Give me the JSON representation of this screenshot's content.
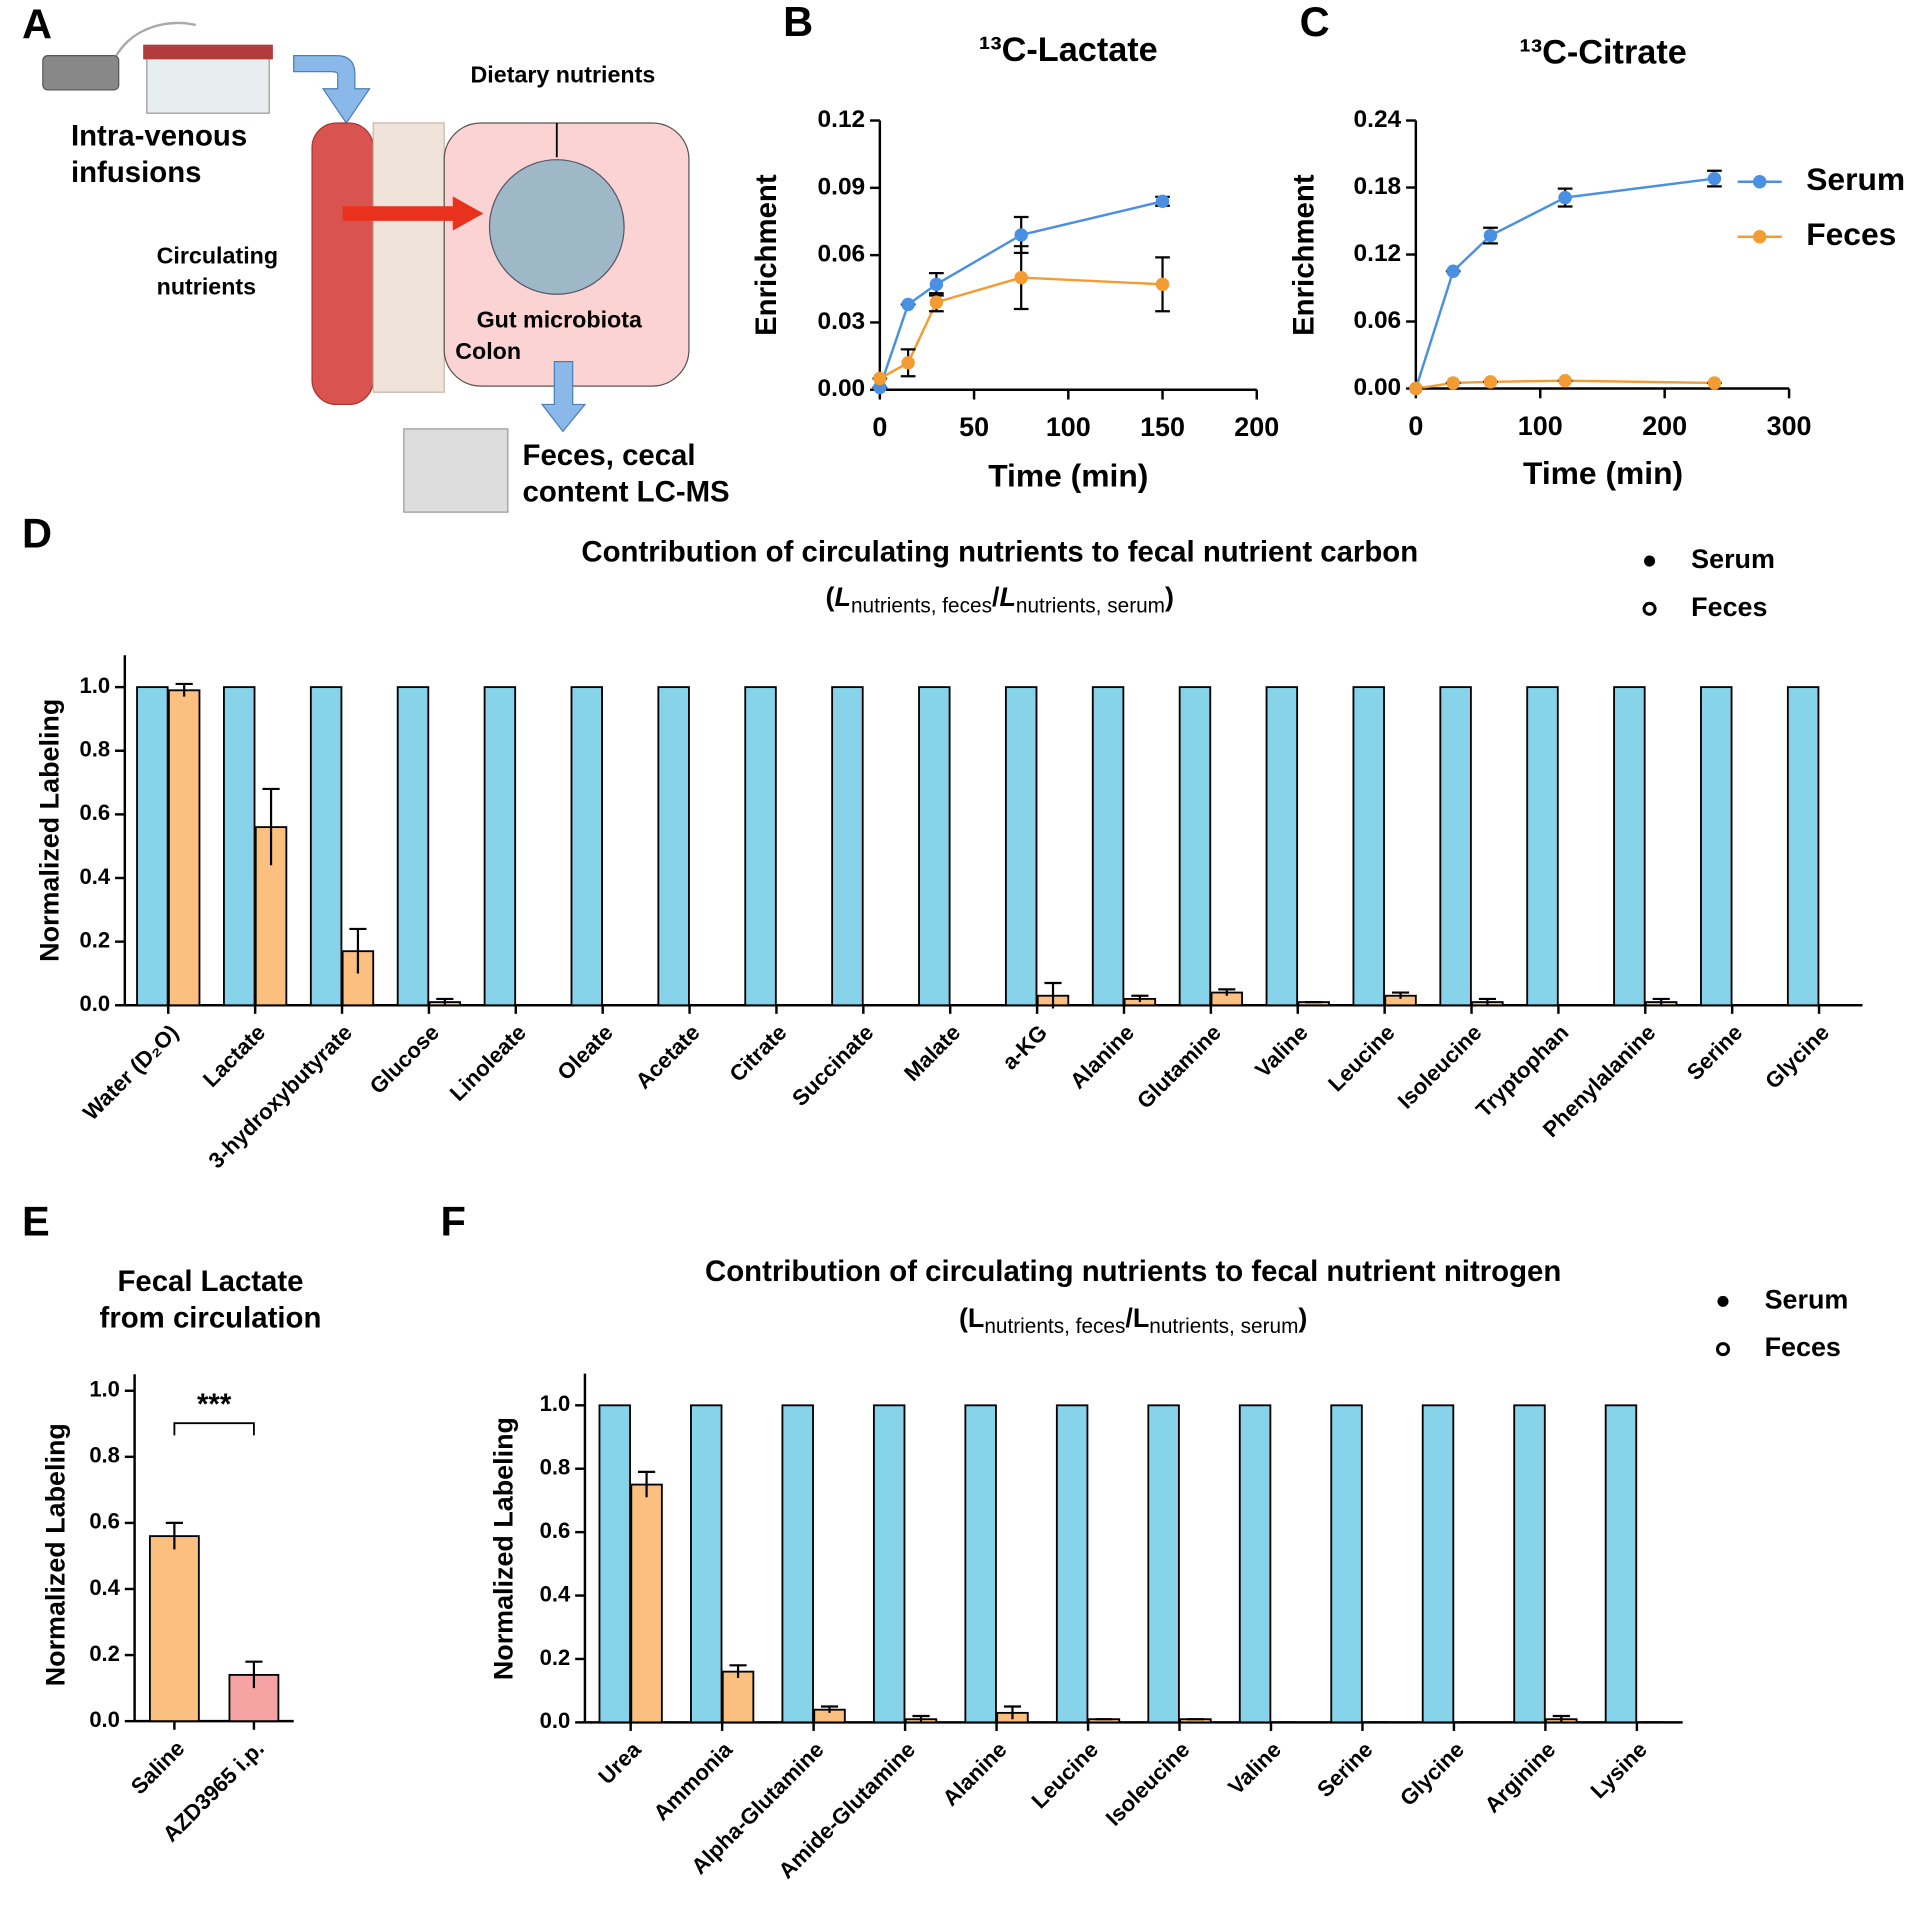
{
  "panels": [
    "A",
    "B",
    "C",
    "D",
    "E",
    "F"
  ],
  "diagram": {
    "infusion": [
      "Intra-venous",
      "infusions"
    ],
    "dietary": "Dietary nutrients",
    "circulating": [
      "Circulating",
      "nutrients"
    ],
    "microbiota": "Gut microbiota",
    "colon": "Colon",
    "output": [
      "Feces, cecal",
      "content LC-MS"
    ]
  },
  "chart_data": [
    {
      "type": "line",
      "title": "¹³C-Lactate",
      "x_label": "Time (min)",
      "y_label": "Enrichment",
      "x": [
        0,
        15,
        30,
        75,
        150
      ],
      "series": [
        {
          "name": "Serum",
          "color": "#4a90e2",
          "values": [
            0.001,
            0.038,
            0.047,
            0.069,
            0.084
          ],
          "errors": [
            0,
            0,
            0.005,
            0.008,
            0.002
          ]
        },
        {
          "name": "Feces",
          "color": "#f39c34",
          "values": [
            0.005,
            0.012,
            0.039,
            0.05,
            0.047
          ],
          "errors": [
            0,
            0.006,
            0.004,
            0.014,
            0.012
          ]
        }
      ],
      "xlim": [
        0,
        200
      ],
      "xticks": [
        0,
        50,
        100,
        150,
        200
      ],
      "ylim": [
        0,
        0.12
      ],
      "yticks": [
        {
          "value": 0,
          "label": "0.00"
        },
        {
          "value": 0.03,
          "label": "0.03"
        },
        {
          "value": 0.06,
          "label": "0.06"
        },
        {
          "value": 0.09,
          "label": "0.09"
        },
        {
          "value": 0.12,
          "label": "0.12"
        }
      ],
      "legend": false
    },
    {
      "type": "line",
      "title": "¹³C-Citrate",
      "x_label": "Time (min)",
      "y_label": "Enrichment",
      "x": [
        0,
        30,
        60,
        120,
        240
      ],
      "series": [
        {
          "name": "Serum",
          "color": "#4a90e2",
          "values": [
            0,
            0.105,
            0.137,
            0.171,
            0.188
          ],
          "errors": [
            0,
            0,
            0.007,
            0.008,
            0.007
          ]
        },
        {
          "name": "Feces",
          "color": "#f39c34",
          "values": [
            0,
            0.005,
            0.006,
            0.007,
            0.005
          ],
          "errors": [
            0,
            0,
            0,
            0,
            0
          ]
        }
      ],
      "xlim": [
        0,
        300
      ],
      "xticks": [
        0,
        100,
        200,
        300
      ],
      "ylim": [
        0,
        0.24
      ],
      "yticks": [
        {
          "value": 0,
          "label": "0.00"
        },
        {
          "value": 0.06,
          "label": "0.06"
        },
        {
          "value": 0.12,
          "label": "0.12"
        },
        {
          "value": 0.18,
          "label": "0.18"
        },
        {
          "value": 0.24,
          "label": "0.24"
        }
      ],
      "legend": true
    },
    {
      "type": "bar",
      "title": "Contribution of circulating nutrients to fecal nutrient carbon",
      "subtitle": [
        "(",
        "L",
        "nutrients, feces",
        "/",
        "L",
        "nutrients, serum",
        ")"
      ],
      "y_label": "Normalized Labeling",
      "categories": [
        "Water (D₂O)",
        "Lactate",
        "3-hydroxybutyrate",
        "Glucose",
        "Linoleate",
        "Oleate",
        "Acetate",
        "Citrate",
        "Succinate",
        "Malate",
        "a-KG",
        "Alanine",
        "Glutamine",
        "Valine",
        "Leucine",
        "Isoleucine",
        "Tryptophan",
        "Phenylalanine",
        "Serine",
        "Glycine"
      ],
      "series": [
        {
          "name": "Serum",
          "color": "#87d3ea",
          "values": [
            1,
            1,
            1,
            1,
            1,
            1,
            1,
            1,
            1,
            1,
            1,
            1,
            1,
            1,
            1,
            1,
            1,
            1,
            1,
            1
          ]
        },
        {
          "name": "Feces",
          "color": "#fbbf7f",
          "values": [
            0.99,
            0.56,
            0.17,
            0.01,
            0,
            0,
            0,
            0,
            0,
            0,
            0.03,
            0.02,
            0.04,
            0.01,
            0.03,
            0.01,
            0,
            0.01,
            0,
            0
          ],
          "errors": [
            0.02,
            0.12,
            0.07,
            0.01,
            0,
            0,
            0,
            0,
            0,
            0,
            0.04,
            0.01,
            0.01,
            0,
            0.01,
            0.01,
            0,
            0.01,
            0,
            0
          ]
        }
      ],
      "ylim": [
        0,
        1.1
      ],
      "yticks": [
        {
          "value": 0,
          "label": "0.0"
        },
        0.2,
        0.4,
        0.6,
        0.8,
        {
          "value": 1,
          "label": "1.0"
        }
      ],
      "legend": true
    },
    {
      "type": "bar",
      "title": [
        "Fecal Lactate",
        "from circulation"
      ],
      "y_label": "Normalized Labeling",
      "categories": [
        "Saline",
        "AZD3965 i.p."
      ],
      "values": [
        0.56,
        0.14
      ],
      "errors": [
        0.04,
        0.04
      ],
      "colors": [
        "#fbbf7f",
        "#f5a3a3"
      ],
      "annotation": "***",
      "ylim": [
        0,
        1.05
      ],
      "yticks": [
        {
          "value": 0,
          "label": "0.0"
        },
        0.2,
        0.4,
        0.6,
        0.8,
        {
          "value": 1,
          "label": "1.0"
        }
      ],
      "legend": false
    },
    {
      "type": "bar",
      "title": "Contribution of circulating nutrients to fecal nutrient nitrogen",
      "subtitle": [
        "(",
        "L",
        "nutrients, feces",
        "/",
        "L",
        "nutrients, serum",
        ")"
      ],
      "y_label": "Normalized Labeling",
      "categories": [
        "Urea",
        "Ammonia",
        "Alpha-Glutamine",
        "Amide-Glutamine",
        "Alanine",
        "Leucine",
        "Isoleucine",
        "Valine",
        "Serine",
        "Glycine",
        "Arginine",
        "Lysine"
      ],
      "series": [
        {
          "name": "Serum",
          "color": "#87d3ea",
          "values": [
            1,
            1,
            1,
            1,
            1,
            1,
            1,
            1,
            1,
            1,
            1,
            1
          ]
        },
        {
          "name": "Feces",
          "color": "#fbbf7f",
          "values": [
            0.75,
            0.16,
            0.04,
            0.01,
            0.03,
            0.01,
            0.01,
            0,
            0,
            0,
            0.01,
            0
          ],
          "errors": [
            0.04,
            0.02,
            0.01,
            0.01,
            0.02,
            0,
            0,
            0,
            0,
            0,
            0.01,
            0
          ]
        }
      ],
      "ylim": [
        0,
        1.1
      ],
      "yticks": [
        {
          "value": 0,
          "label": "0.0"
        },
        0.2,
        0.4,
        0.6,
        0.8,
        {
          "value": 1,
          "label": "1.0"
        }
      ],
      "legend": true
    }
  ]
}
